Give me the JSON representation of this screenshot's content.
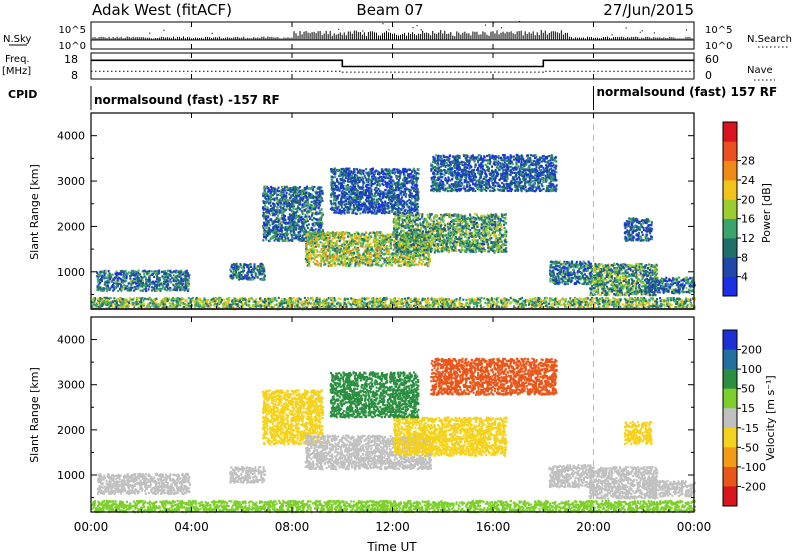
{
  "header": {
    "radar": "Adak West (fitACF)",
    "beam": "Beam 07",
    "date": "27/Jun/2015"
  },
  "strip_labels": {
    "nsky": "N.Sky",
    "nsearch": "N.Search",
    "freq_line1": "Freq.",
    "freq_line2": "[MHz]",
    "nave": "Nave",
    "cpid": "CPID"
  },
  "cpid_segments": [
    {
      "start_hour": 0,
      "end_hour": 20,
      "label": "normalsound (fast) -157 RF"
    },
    {
      "start_hour": 20,
      "end_hour": 24,
      "label": "normalsound (fast) 157 RF"
    }
  ],
  "colorbars": {
    "power": {
      "label": "Power [dB]",
      "ticks": [
        "4",
        "8",
        "12",
        "16",
        "20",
        "24",
        "28"
      ],
      "colors": [
        "#1a2fe6",
        "#2048a8",
        "#1f6e6a",
        "#3aa56a",
        "#9ccc30",
        "#f2c31b",
        "#ef8a17",
        "#e9501e",
        "#d9141e"
      ]
    },
    "velocity": {
      "label": "Velocity [m s⁻¹]",
      "ticks": [
        "200",
        "100",
        "50",
        "15",
        "-15",
        "-50",
        "-100",
        "-200"
      ],
      "colors": [
        "#1b2fd4",
        "#2070a0",
        "#2a8f40",
        "#7dcf2c",
        "#c0c0c0",
        "#f5d21b",
        "#f39b14",
        "#e8561a",
        "#d8141c"
      ]
    }
  },
  "chart_data": [
    {
      "type": "line",
      "title": "N.Sky / N.Search",
      "y_ticks": [
        "10^5",
        "10^0"
      ],
      "y2_ticks": [
        "10^5",
        "10^0"
      ],
      "x_range_hours": [
        0,
        24
      ]
    },
    {
      "type": "line",
      "title": "Freq. [MHz] / Nave",
      "y_ticks": [
        18,
        8
      ],
      "y2_ticks": [
        60,
        0
      ],
      "series": [
        {
          "name": "Freq.",
          "x": [
            0,
            10,
            10,
            18,
            18,
            24
          ],
          "y": [
            15.2,
            15.2,
            12.8,
            12.8,
            15.2,
            15.2
          ]
        },
        {
          "name": "Nave",
          "x": [
            0,
            10,
            10,
            18,
            18,
            24
          ],
          "y": [
            18,
            18,
            16,
            16,
            18,
            18
          ]
        }
      ]
    },
    {
      "type": "heatmap",
      "quantity": "power",
      "ylabel": "Slant Range [km]",
      "y_ticks": [
        1000,
        2000,
        3000,
        4000
      ],
      "ylim": [
        180,
        4500
      ],
      "x_range_hours": [
        0,
        24
      ],
      "regions": [
        {
          "x": [
            0.2,
            3.9
          ],
          "y": [
            600,
            1050
          ],
          "level": 8
        },
        {
          "x": [
            5.5,
            6.9
          ],
          "y": [
            850,
            1200
          ],
          "level": 8
        },
        {
          "x": [
            6.8,
            9.2
          ],
          "y": [
            1700,
            2900
          ],
          "level": 8
        },
        {
          "x": [
            8.5,
            13.5
          ],
          "y": [
            1150,
            1900
          ],
          "level": 16
        },
        {
          "x": [
            12.0,
            16.5
          ],
          "y": [
            1450,
            2300
          ],
          "level": 12
        },
        {
          "x": [
            9.5,
            13.0
          ],
          "y": [
            2300,
            3300
          ],
          "level": 6
        },
        {
          "x": [
            13.5,
            18.5
          ],
          "y": [
            2800,
            3600
          ],
          "level": 6
        },
        {
          "x": [
            18.2,
            19.9
          ],
          "y": [
            750,
            1250
          ],
          "level": 8
        },
        {
          "x": [
            19.8,
            22.5
          ],
          "y": [
            500,
            1200
          ],
          "level": 12
        },
        {
          "x": [
            22.0,
            24.0
          ],
          "y": [
            550,
            900
          ],
          "level": 8
        },
        {
          "x": [
            0.0,
            24.0
          ],
          "y": [
            200,
            450
          ],
          "level": 14
        },
        {
          "x": [
            21.2,
            22.3
          ],
          "y": [
            1700,
            2200
          ],
          "level": 6
        }
      ]
    },
    {
      "type": "heatmap",
      "quantity": "velocity",
      "xlabel": "Time UT",
      "ylabel": "Slant Range [km]",
      "x_ticks": [
        "00:00",
        "04:00",
        "08:00",
        "12:00",
        "16:00",
        "20:00",
        "00:00"
      ],
      "y_ticks": [
        1000,
        2000,
        3000,
        4000
      ],
      "ylim": [
        180,
        4500
      ],
      "x_range_hours": [
        0,
        24
      ],
      "regions": [
        {
          "x": [
            0.2,
            3.9
          ],
          "y": [
            600,
            1050
          ],
          "level": 0
        },
        {
          "x": [
            5.5,
            6.9
          ],
          "y": [
            850,
            1200
          ],
          "level": 0
        },
        {
          "x": [
            6.8,
            9.2
          ],
          "y": [
            1700,
            2900
          ],
          "level": -40
        },
        {
          "x": [
            8.5,
            13.5
          ],
          "y": [
            1150,
            1900
          ],
          "level": 0
        },
        {
          "x": [
            12.0,
            16.5
          ],
          "y": [
            1450,
            2300
          ],
          "level": -30
        },
        {
          "x": [
            9.5,
            13.0
          ],
          "y": [
            2300,
            3300
          ],
          "level": 60
        },
        {
          "x": [
            13.5,
            18.5
          ],
          "y": [
            2800,
            3600
          ],
          "level": -120
        },
        {
          "x": [
            18.2,
            19.9
          ],
          "y": [
            750,
            1250
          ],
          "level": 0
        },
        {
          "x": [
            19.8,
            22.5
          ],
          "y": [
            500,
            1200
          ],
          "level": 0
        },
        {
          "x": [
            22.0,
            24.0
          ],
          "y": [
            550,
            900
          ],
          "level": 0
        },
        {
          "x": [
            0.0,
            24.0
          ],
          "y": [
            200,
            450
          ],
          "level": 30
        },
        {
          "x": [
            21.2,
            22.3
          ],
          "y": [
            1700,
            2200
          ],
          "level": -40
        }
      ]
    }
  ]
}
